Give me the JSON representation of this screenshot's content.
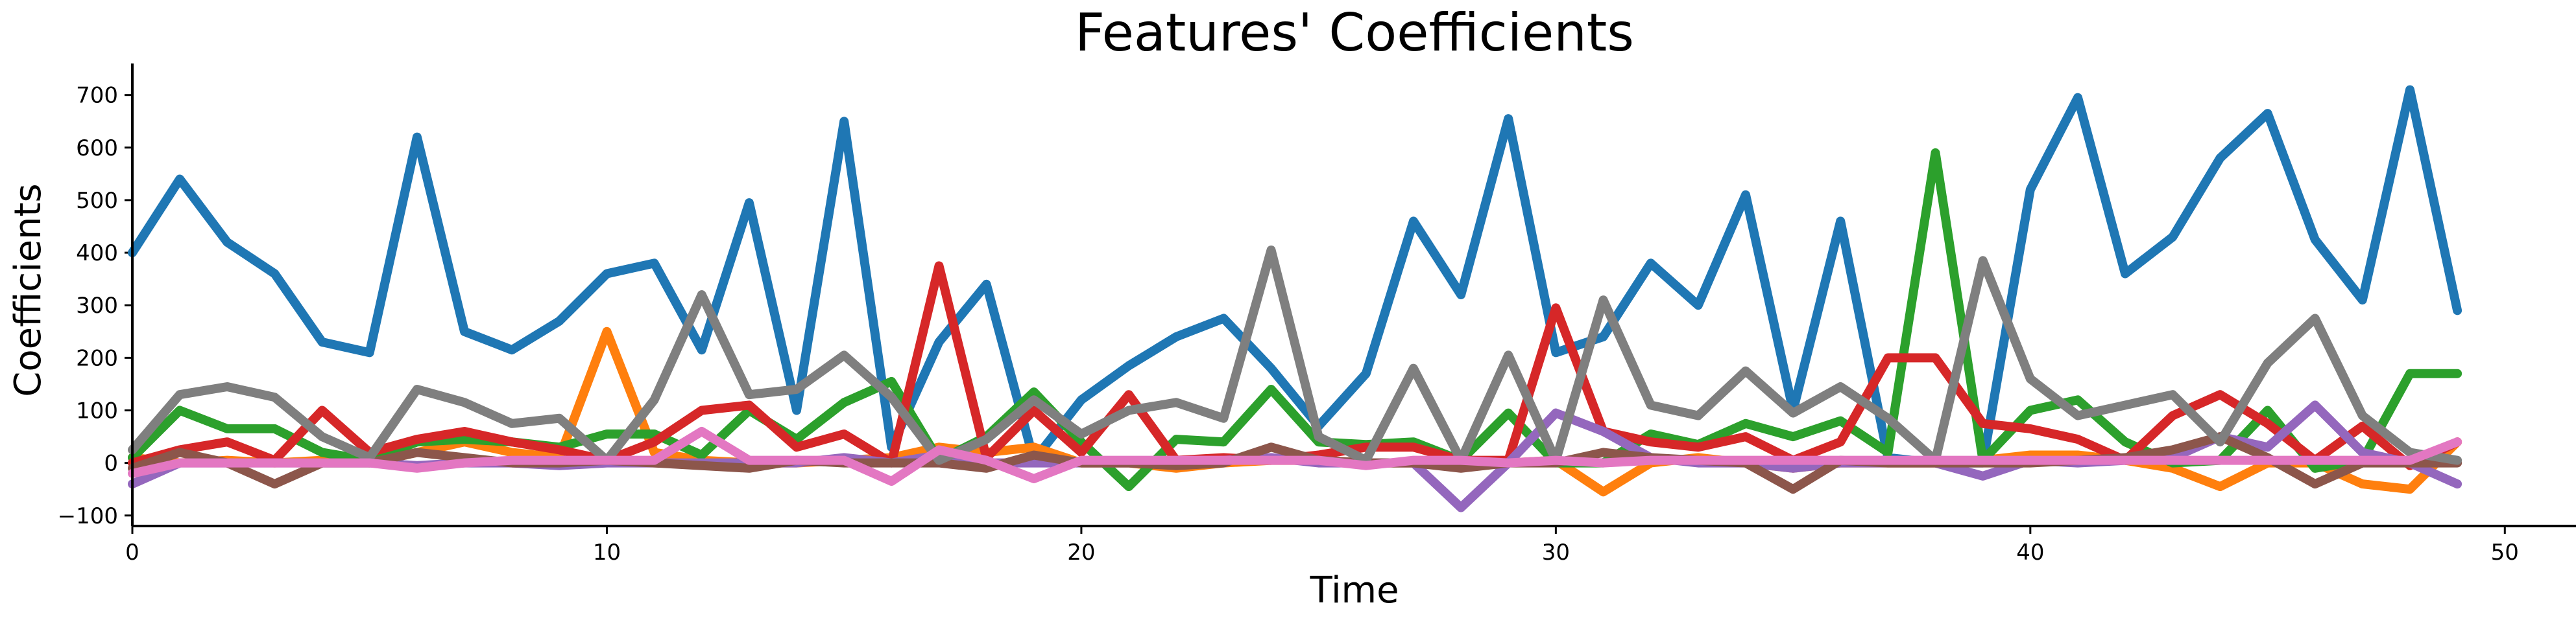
{
  "chart_data": {
    "type": "line",
    "title": "Features' Coefficients",
    "xlabel": "Time",
    "ylabel": "Coefficients",
    "xlim": [
      0,
      51.5
    ],
    "ylim": [
      -120,
      760
    ],
    "xticks": [
      0,
      10,
      20,
      30,
      40,
      50
    ],
    "yticks": [
      -100,
      0,
      100,
      200,
      300,
      400,
      500,
      600,
      700
    ],
    "ytick_labels": [
      "−100",
      "0",
      "100",
      "200",
      "300",
      "400",
      "500",
      "600",
      "700"
    ],
    "grid": false,
    "legend": "none",
    "x": [
      0,
      1,
      2,
      3,
      4,
      5,
      6,
      7,
      8,
      9,
      10,
      11,
      12,
      13,
      14,
      15,
      16,
      17,
      18,
      19,
      20,
      21,
      22,
      23,
      24,
      25,
      26,
      27,
      28,
      29,
      30,
      31,
      32,
      33,
      34,
      35,
      36,
      37,
      38,
      39,
      40,
      41,
      42,
      43,
      44,
      45,
      46,
      47,
      48,
      49
    ],
    "series": [
      {
        "color": "#1f77b4",
        "values": [
          400,
          540,
          420,
          360,
          230,
          210,
          620,
          250,
          215,
          270,
          360,
          380,
          215,
          495,
          100,
          650,
          30,
          230,
          340,
          5,
          120,
          185,
          240,
          275,
          180,
          70,
          170,
          460,
          320,
          655,
          210,
          240,
          380,
          300,
          510,
          100,
          460,
          10,
          0,
          0,
          520,
          695,
          360,
          430,
          580,
          665,
          425,
          310,
          710,
          290
        ]
      },
      {
        "color": "#ff7f0e",
        "values": [
          10,
          0,
          5,
          0,
          5,
          0,
          20,
          40,
          20,
          10,
          250,
          20,
          5,
          0,
          0,
          5,
          10,
          30,
          20,
          30,
          0,
          0,
          -10,
          0,
          5,
          5,
          0,
          0,
          0,
          0,
          5,
          -55,
          0,
          10,
          0,
          -10,
          0,
          0,
          0,
          5,
          15,
          15,
          5,
          -10,
          -45,
          0,
          0,
          -40,
          -50,
          40
        ]
      },
      {
        "color": "#2ca02c",
        "values": [
          10,
          100,
          65,
          65,
          20,
          5,
          40,
          45,
          40,
          30,
          55,
          55,
          15,
          100,
          45,
          115,
          155,
          5,
          50,
          135,
          40,
          -45,
          45,
          40,
          140,
          40,
          35,
          40,
          5,
          95,
          0,
          0,
          55,
          35,
          75,
          50,
          80,
          20,
          590,
          5,
          100,
          120,
          40,
          0,
          5,
          100,
          -10,
          5,
          170,
          170
        ]
      },
      {
        "color": "#d62728",
        "values": [
          0,
          25,
          40,
          5,
          100,
          20,
          45,
          60,
          40,
          25,
          5,
          40,
          100,
          110,
          30,
          55,
          0,
          375,
          10,
          100,
          20,
          130,
          5,
          10,
          5,
          15,
          30,
          30,
          5,
          5,
          295,
          60,
          40,
          30,
          50,
          5,
          40,
          200,
          200,
          75,
          65,
          45,
          5,
          90,
          130,
          75,
          5,
          70,
          -5,
          40
        ]
      },
      {
        "color": "#9467bd",
        "values": [
          -40,
          0,
          0,
          0,
          0,
          0,
          -5,
          0,
          0,
          -5,
          0,
          0,
          0,
          0,
          0,
          10,
          0,
          15,
          0,
          0,
          0,
          0,
          0,
          5,
          10,
          0,
          0,
          0,
          -85,
          0,
          95,
          60,
          10,
          0,
          0,
          -10,
          0,
          0,
          0,
          -25,
          5,
          0,
          5,
          10,
          50,
          30,
          110,
          20,
          0,
          -40
        ]
      },
      {
        "color": "#8c564b",
        "values": [
          -10,
          20,
          0,
          -40,
          0,
          0,
          20,
          10,
          0,
          0,
          5,
          0,
          -5,
          -10,
          5,
          0,
          0,
          0,
          -10,
          15,
          0,
          0,
          -5,
          0,
          30,
          5,
          0,
          0,
          -10,
          0,
          0,
          20,
          10,
          5,
          0,
          -50,
          5,
          0,
          0,
          0,
          0,
          5,
          10,
          25,
          50,
          10,
          -40,
          0,
          0,
          0
        ]
      },
      {
        "color": "#7f7f7f",
        "values": [
          25,
          130,
          145,
          125,
          50,
          10,
          140,
          115,
          75,
          85,
          5,
          120,
          320,
          130,
          140,
          205,
          125,
          5,
          45,
          120,
          55,
          100,
          115,
          85,
          405,
          50,
          5,
          180,
          5,
          205,
          5,
          310,
          110,
          90,
          175,
          95,
          145,
          85,
          5,
          385,
          160,
          90,
          110,
          130,
          40,
          190,
          275,
          90,
          20,
          5
        ]
      },
      {
        "color": "#e377c2",
        "values": [
          -20,
          0,
          0,
          0,
          0,
          0,
          -10,
          0,
          5,
          5,
          5,
          5,
          60,
          5,
          5,
          5,
          -35,
          25,
          5,
          -30,
          5,
          5,
          5,
          5,
          5,
          5,
          -5,
          5,
          5,
          0,
          5,
          0,
          5,
          5,
          5,
          5,
          5,
          5,
          5,
          5,
          5,
          5,
          5,
          5,
          5,
          5,
          5,
          5,
          5,
          40
        ]
      }
    ]
  }
}
